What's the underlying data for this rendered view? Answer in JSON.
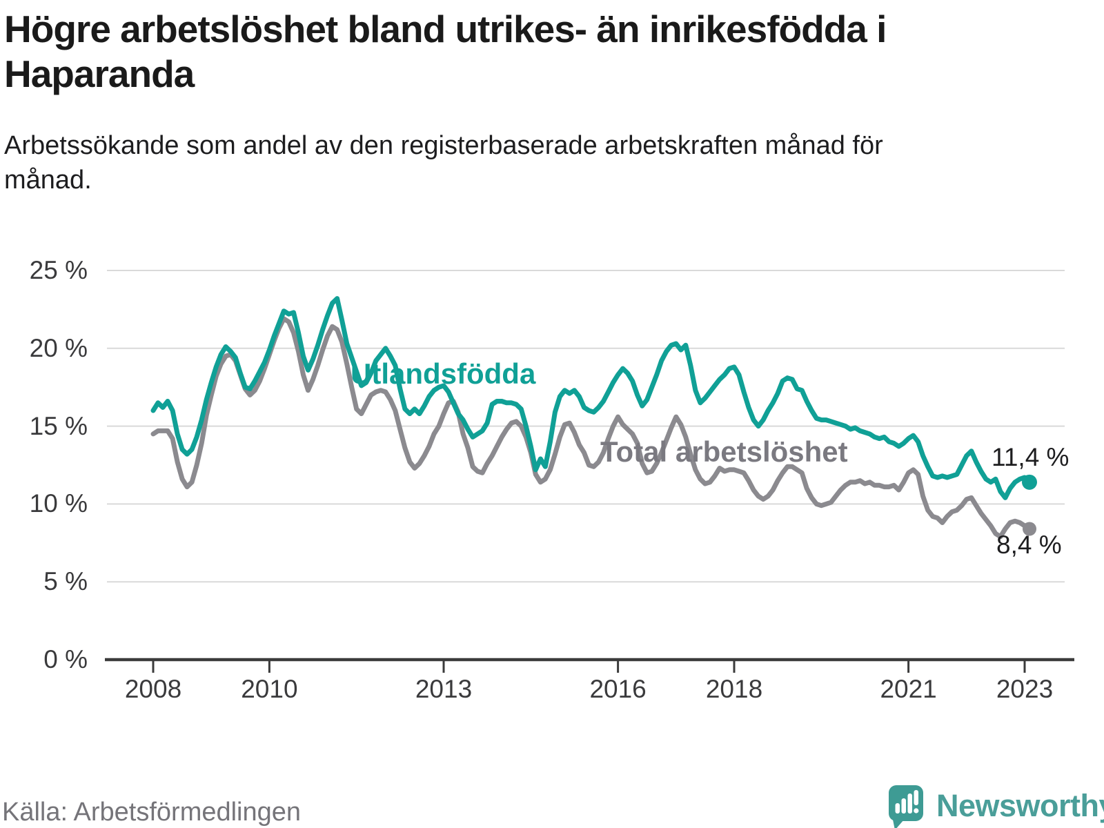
{
  "header": {
    "title": "Högre arbetslöshet bland utrikes- än inrikesfödda i Haparanda",
    "subtitle": "Arbetssökande som andel av den registerbaserade arbetskraften månad för månad."
  },
  "source": {
    "label": "Källa: Arbetsförmedlingen"
  },
  "branding": {
    "wordmark": "Newsworthy",
    "logo_color": "#3e9b94",
    "wordmark_color": "#4a9e99"
  },
  "chart_data": {
    "type": "line",
    "title": "Högre arbetslöshet bland utrikes- än inrikesfödda i Haparanda",
    "frequency": "monthly",
    "x_start": "2008-01",
    "x_end": "2023-02",
    "grid": true,
    "legend_position": "inline-labels",
    "style": {
      "grid_color": "#d9d9d9",
      "axis_color": "#3b3b3b",
      "background": "#ffffff"
    },
    "y_axis": {
      "ticks": [
        0,
        5,
        10,
        15,
        20,
        25
      ],
      "labels": [
        "0 %",
        "5 %",
        "10 %",
        "15 %",
        "20 %",
        "25 %"
      ],
      "ylim": [
        0,
        25
      ],
      "unit": "%"
    },
    "x_axis": {
      "tick_years": [
        2008,
        2010,
        2013,
        2016,
        2018,
        2021,
        2023
      ],
      "labels": [
        "2008",
        "2010",
        "2013",
        "2016",
        "2018",
        "2021",
        "2023"
      ]
    },
    "series": [
      {
        "name": "Utlandsfödda",
        "color": "#10a096",
        "end_label": "11,4 %",
        "end_value": 11.4,
        "end_dot_radius": 11,
        "values": [
          16.0,
          16.5,
          16.2,
          16.6,
          16.0,
          14.5,
          13.5,
          13.2,
          13.5,
          14.3,
          15.4,
          16.7,
          17.8,
          18.8,
          19.6,
          20.1,
          19.8,
          19.4,
          18.4,
          17.5,
          17.4,
          17.9,
          18.5,
          19.1,
          19.9,
          20.8,
          21.6,
          22.4,
          22.2,
          22.3,
          21.0,
          19.5,
          18.6,
          19.3,
          20.2,
          21.2,
          22.1,
          22.9,
          23.2,
          21.8,
          20.3,
          19.4,
          18.5,
          17.6,
          17.8,
          18.4,
          19.2,
          19.6,
          20.0,
          19.5,
          18.9,
          17.4,
          16.1,
          15.8,
          16.1,
          15.8,
          16.3,
          16.9,
          17.3,
          17.5,
          17.6,
          17.2,
          16.5,
          15.8,
          15.4,
          14.8,
          14.3,
          14.5,
          14.7,
          15.2,
          16.4,
          16.6,
          16.6,
          16.5,
          16.5,
          16.4,
          16.1,
          15.0,
          13.7,
          12.2,
          12.9,
          12.4,
          14.0,
          15.9,
          16.9,
          17.3,
          17.1,
          17.3,
          16.9,
          16.2,
          16.0,
          15.9,
          16.2,
          16.6,
          17.2,
          17.8,
          18.3,
          18.7,
          18.4,
          17.9,
          17.0,
          16.3,
          16.7,
          17.5,
          18.3,
          19.2,
          19.8,
          20.2,
          20.3,
          19.9,
          20.2,
          18.9,
          17.3,
          16.5,
          16.8,
          17.2,
          17.6,
          18.0,
          18.3,
          18.7,
          18.8,
          18.3,
          17.2,
          16.2,
          15.4,
          15.0,
          15.4,
          16.0,
          16.5,
          17.1,
          17.9,
          18.1,
          18.0,
          17.4,
          17.3,
          16.6,
          16.0,
          15.5,
          15.4,
          15.4,
          15.3,
          15.2,
          15.1,
          15.0,
          14.8,
          14.9,
          14.7,
          14.6,
          14.5,
          14.3,
          14.2,
          14.3,
          14.0,
          13.9,
          13.7,
          13.9,
          14.2,
          14.4,
          14.0,
          13.1,
          12.4,
          11.8,
          11.7,
          11.8,
          11.7,
          11.8,
          11.9,
          12.5,
          13.1,
          13.4,
          12.7,
          12.1,
          11.6,
          11.4,
          11.6,
          10.8,
          10.4,
          11.0,
          11.4,
          11.6,
          11.7,
          11.4
        ]
      },
      {
        "name": "Total arbetslöshet",
        "color": "#8b8a8f",
        "end_label": "8,4 %",
        "end_value": 8.4,
        "end_dot_radius": 10,
        "values": [
          14.5,
          14.7,
          14.7,
          14.7,
          14.2,
          12.7,
          11.6,
          11.1,
          11.4,
          12.5,
          13.9,
          15.7,
          17.0,
          18.2,
          19.0,
          19.5,
          19.6,
          19.2,
          18.3,
          17.4,
          17.0,
          17.3,
          17.9,
          18.7,
          19.6,
          20.5,
          21.3,
          21.9,
          21.7,
          21.0,
          19.8,
          18.3,
          17.3,
          18.0,
          18.9,
          19.9,
          20.8,
          21.4,
          21.2,
          20.4,
          19.0,
          17.5,
          16.1,
          15.8,
          16.4,
          17.0,
          17.2,
          17.3,
          17.2,
          16.7,
          16.0,
          14.8,
          13.6,
          12.7,
          12.3,
          12.6,
          13.1,
          13.7,
          14.5,
          15.0,
          15.8,
          16.5,
          16.6,
          15.9,
          14.5,
          13.6,
          12.4,
          12.1,
          12.0,
          12.6,
          13.1,
          13.7,
          14.3,
          14.8,
          15.2,
          15.3,
          15.0,
          14.3,
          13.3,
          11.9,
          11.4,
          11.6,
          12.2,
          13.2,
          14.3,
          15.1,
          15.2,
          14.6,
          13.8,
          13.3,
          12.5,
          12.4,
          12.7,
          13.3,
          14.2,
          15.0,
          15.6,
          15.1,
          14.8,
          14.5,
          13.9,
          12.6,
          12.0,
          12.1,
          12.6,
          13.3,
          14.1,
          14.9,
          15.6,
          15.1,
          14.3,
          13.2,
          12.2,
          11.6,
          11.3,
          11.4,
          11.8,
          12.3,
          12.1,
          12.2,
          12.2,
          12.1,
          12.0,
          11.5,
          10.9,
          10.5,
          10.3,
          10.5,
          10.9,
          11.5,
          12.0,
          12.4,
          12.4,
          12.2,
          12.0,
          11.0,
          10.4,
          10.0,
          9.9,
          10.0,
          10.1,
          10.5,
          10.9,
          11.2,
          11.4,
          11.4,
          11.5,
          11.3,
          11.4,
          11.2,
          11.2,
          11.1,
          11.1,
          11.2,
          10.9,
          11.4,
          12.0,
          12.2,
          11.9,
          10.5,
          9.6,
          9.2,
          9.1,
          8.8,
          9.2,
          9.5,
          9.6,
          9.9,
          10.3,
          10.4,
          9.9,
          9.4,
          9.0,
          8.6,
          8.1,
          7.9,
          8.4,
          8.8,
          8.9,
          8.8,
          8.6,
          8.4
        ]
      }
    ]
  }
}
